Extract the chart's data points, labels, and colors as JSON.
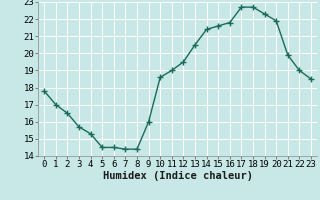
{
  "x": [
    0,
    1,
    2,
    3,
    4,
    5,
    6,
    7,
    8,
    9,
    10,
    11,
    12,
    13,
    14,
    15,
    16,
    17,
    18,
    19,
    20,
    21,
    22,
    23
  ],
  "y": [
    17.8,
    17.0,
    16.5,
    15.7,
    15.3,
    14.5,
    14.5,
    14.4,
    14.4,
    16.0,
    18.6,
    19.0,
    19.5,
    20.5,
    21.4,
    21.6,
    21.8,
    22.7,
    22.7,
    22.3,
    21.9,
    19.9,
    19.0,
    18.5
  ],
  "line_color": "#1a6b5a",
  "marker": "+",
  "marker_size": 4,
  "marker_linewidth": 1.0,
  "bg_color": "#c8e8e8",
  "grid_color": "#b0d8d8",
  "xlabel": "Humidex (Indice chaleur)",
  "xlim": [
    -0.5,
    23.5
  ],
  "ylim": [
    14,
    23
  ],
  "yticks": [
    14,
    15,
    16,
    17,
    18,
    19,
    20,
    21,
    22,
    23
  ],
  "xticks": [
    0,
    1,
    2,
    3,
    4,
    5,
    6,
    7,
    8,
    9,
    10,
    11,
    12,
    13,
    14,
    15,
    16,
    17,
    18,
    19,
    20,
    21,
    22,
    23
  ],
  "xlabel_fontsize": 7.5,
  "tick_fontsize": 6.5
}
